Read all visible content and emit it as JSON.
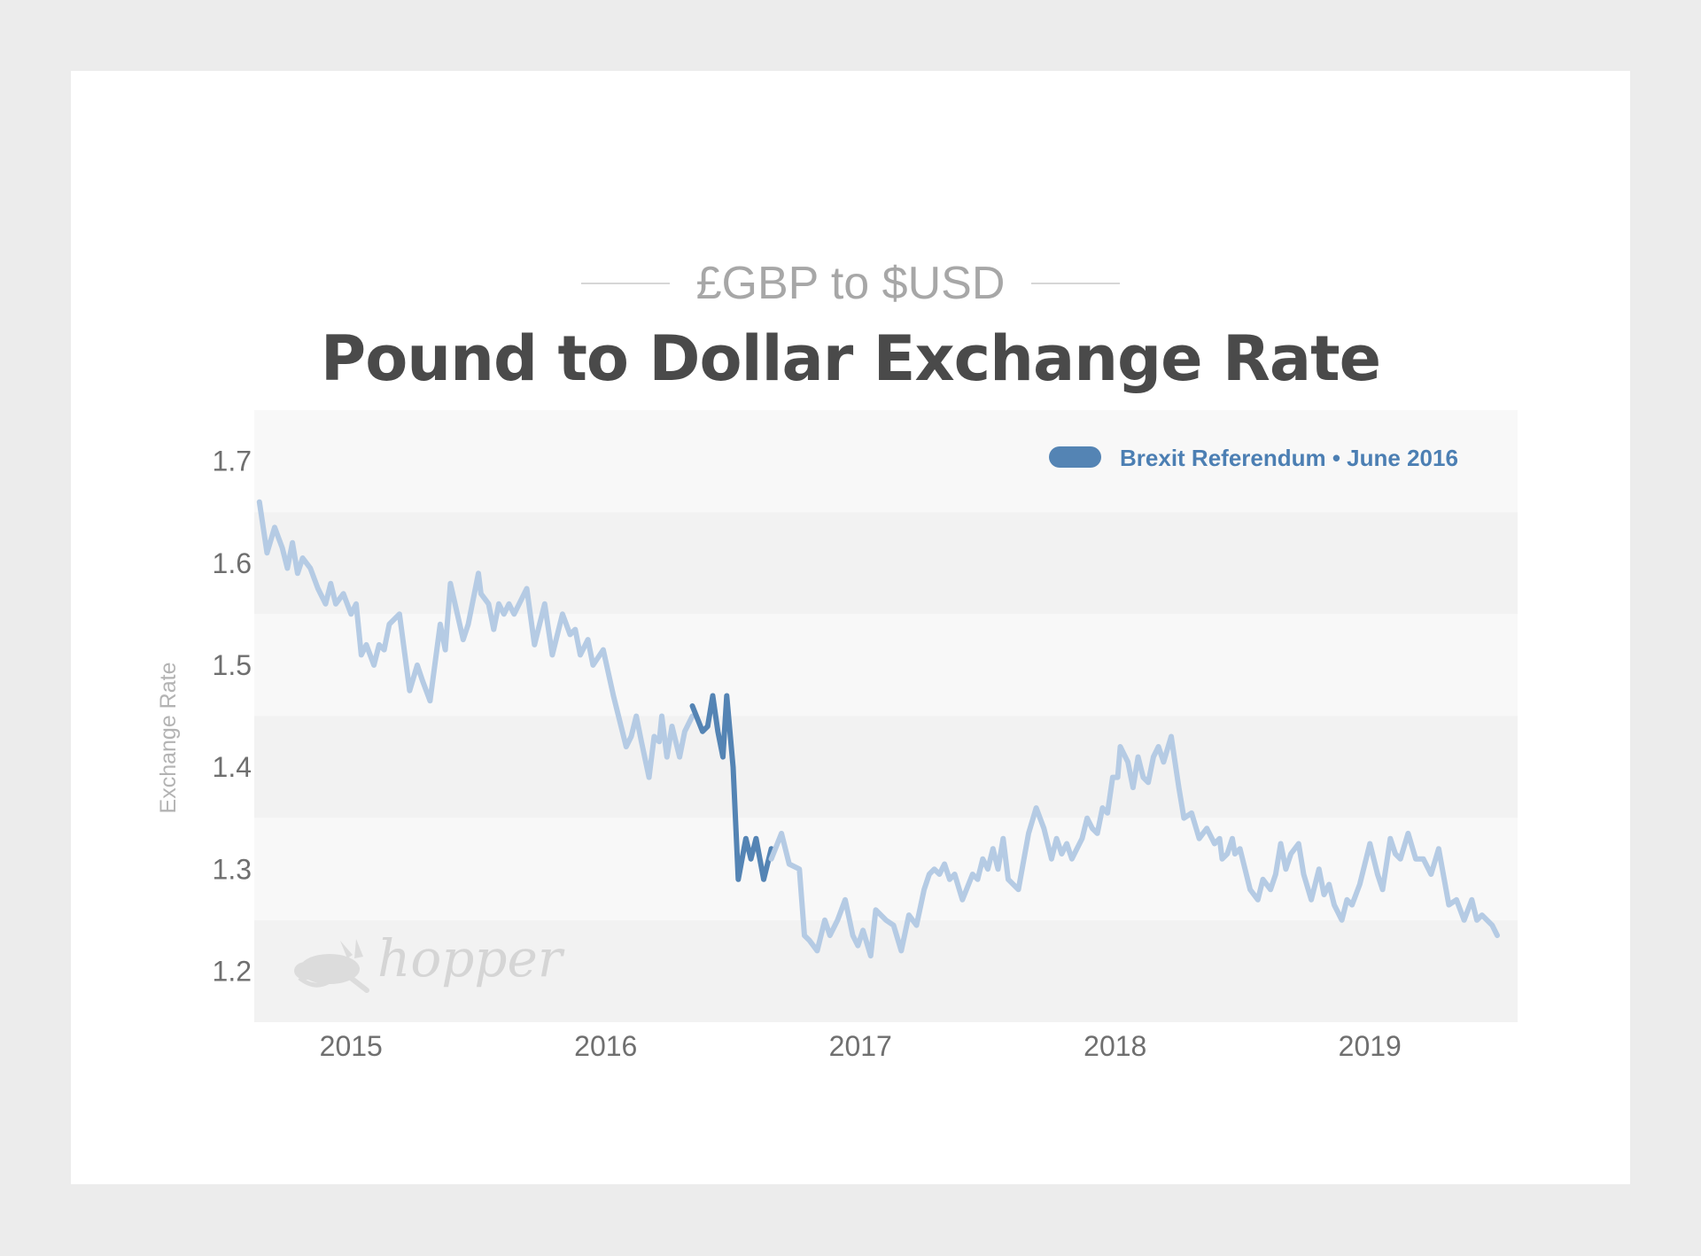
{
  "header": {
    "subtitle": "£GBP to $USD",
    "title": "Pound to Dollar Exchange Rate"
  },
  "watermark": {
    "text": "hopper",
    "icon": "rabbit-icon"
  },
  "colors": {
    "base_line": "#b5cbe4",
    "highlight_line": "#5484b4",
    "band_light": "#f8f8f8",
    "band_dark": "#f2f2f2"
  },
  "chart_data": {
    "type": "line",
    "title": "Pound to Dollar Exchange Rate",
    "subtitle": "£GBP to $USD",
    "ylabel": "Exchange Rate",
    "xlabel": "",
    "xlim": [
      2014.62,
      2019.58
    ],
    "ylim": [
      1.15,
      1.75
    ],
    "x_ticks": [
      2015,
      2016,
      2017,
      2018,
      2019
    ],
    "x_tick_labels": [
      "2015",
      "2016",
      "2017",
      "2018",
      "2019"
    ],
    "y_ticks": [
      1.2,
      1.3,
      1.4,
      1.5,
      1.6,
      1.7
    ],
    "y_tick_labels": [
      "1.2",
      "1.3",
      "1.4",
      "1.5",
      "1.6",
      "1.7"
    ],
    "grid": "alternating horizontal bands",
    "legend_position": "top-right",
    "legend": [
      {
        "label": "Brexit Referendum • June 2016",
        "series": "Brexit Referendum"
      }
    ],
    "series": [
      {
        "points": [
          [
            2014.64,
            1.66
          ],
          [
            2014.67,
            1.61
          ],
          [
            2014.7,
            1.635
          ],
          [
            2014.73,
            1.615
          ],
          [
            2014.75,
            1.595
          ],
          [
            2014.77,
            1.62
          ],
          [
            2014.79,
            1.59
          ],
          [
            2014.81,
            1.605
          ],
          [
            2014.84,
            1.595
          ],
          [
            2014.87,
            1.575
          ],
          [
            2014.9,
            1.56
          ],
          [
            2014.92,
            1.58
          ],
          [
            2014.94,
            1.56
          ],
          [
            2014.97,
            1.57
          ],
          [
            2015.0,
            1.55
          ],
          [
            2015.02,
            1.56
          ],
          [
            2015.04,
            1.51
          ],
          [
            2015.06,
            1.52
          ],
          [
            2015.09,
            1.5
          ],
          [
            2015.11,
            1.52
          ],
          [
            2015.13,
            1.515
          ],
          [
            2015.15,
            1.54
          ],
          [
            2015.19,
            1.55
          ],
          [
            2015.23,
            1.475
          ],
          [
            2015.26,
            1.5
          ],
          [
            2015.28,
            1.485
          ],
          [
            2015.31,
            1.465
          ],
          [
            2015.35,
            1.54
          ],
          [
            2015.37,
            1.515
          ],
          [
            2015.39,
            1.58
          ],
          [
            2015.44,
            1.525
          ],
          [
            2015.46,
            1.54
          ],
          [
            2015.5,
            1.59
          ],
          [
            2015.51,
            1.57
          ],
          [
            2015.54,
            1.56
          ],
          [
            2015.56,
            1.535
          ],
          [
            2015.58,
            1.56
          ],
          [
            2015.6,
            1.55
          ],
          [
            2015.62,
            1.56
          ],
          [
            2015.64,
            1.55
          ],
          [
            2015.69,
            1.575
          ],
          [
            2015.72,
            1.52
          ],
          [
            2015.76,
            1.56
          ],
          [
            2015.79,
            1.51
          ],
          [
            2015.83,
            1.55
          ],
          [
            2015.86,
            1.53
          ],
          [
            2015.88,
            1.535
          ],
          [
            2015.9,
            1.51
          ],
          [
            2015.93,
            1.525
          ],
          [
            2015.95,
            1.5
          ],
          [
            2015.99,
            1.515
          ],
          [
            2016.03,
            1.47
          ],
          [
            2016.08,
            1.42
          ],
          [
            2016.1,
            1.43
          ],
          [
            2016.12,
            1.45
          ],
          [
            2016.14,
            1.425
          ],
          [
            2016.17,
            1.39
          ],
          [
            2016.19,
            1.43
          ],
          [
            2016.21,
            1.425
          ],
          [
            2016.22,
            1.45
          ],
          [
            2016.24,
            1.41
          ],
          [
            2016.26,
            1.44
          ],
          [
            2016.29,
            1.41
          ],
          [
            2016.31,
            1.435
          ],
          [
            2016.34,
            1.45
          ]
        ]
      },
      {
        "name": "Brexit Referendum",
        "points": [
          [
            2016.34,
            1.46
          ],
          [
            2016.38,
            1.435
          ],
          [
            2016.4,
            1.44
          ],
          [
            2016.42,
            1.47
          ],
          [
            2016.44,
            1.435
          ],
          [
            2016.46,
            1.41
          ],
          [
            2016.475,
            1.47
          ],
          [
            2016.5,
            1.4
          ],
          [
            2016.52,
            1.29
          ],
          [
            2016.55,
            1.33
          ],
          [
            2016.57,
            1.31
          ],
          [
            2016.59,
            1.33
          ],
          [
            2016.62,
            1.29
          ],
          [
            2016.65,
            1.32
          ]
        ]
      },
      {
        "points": [
          [
            2016.65,
            1.31
          ],
          [
            2016.69,
            1.335
          ],
          [
            2016.72,
            1.305
          ],
          [
            2016.76,
            1.3
          ],
          [
            2016.78,
            1.235
          ],
          [
            2016.8,
            1.23
          ],
          [
            2016.83,
            1.22
          ],
          [
            2016.86,
            1.25
          ],
          [
            2016.88,
            1.235
          ],
          [
            2016.91,
            1.25
          ],
          [
            2016.94,
            1.27
          ],
          [
            2016.97,
            1.235
          ],
          [
            2016.99,
            1.225
          ],
          [
            2017.01,
            1.24
          ],
          [
            2017.04,
            1.215
          ],
          [
            2017.06,
            1.26
          ],
          [
            2017.1,
            1.25
          ],
          [
            2017.13,
            1.245
          ],
          [
            2017.16,
            1.22
          ],
          [
            2017.19,
            1.255
          ],
          [
            2017.22,
            1.245
          ],
          [
            2017.25,
            1.28
          ],
          [
            2017.27,
            1.295
          ],
          [
            2017.29,
            1.3
          ],
          [
            2017.31,
            1.295
          ],
          [
            2017.33,
            1.305
          ],
          [
            2017.35,
            1.29
          ],
          [
            2017.37,
            1.295
          ],
          [
            2017.4,
            1.27
          ],
          [
            2017.44,
            1.295
          ],
          [
            2017.46,
            1.29
          ],
          [
            2017.48,
            1.31
          ],
          [
            2017.5,
            1.3
          ],
          [
            2017.52,
            1.32
          ],
          [
            2017.54,
            1.3
          ],
          [
            2017.56,
            1.33
          ],
          [
            2017.58,
            1.29
          ],
          [
            2017.62,
            1.28
          ],
          [
            2017.66,
            1.335
          ],
          [
            2017.69,
            1.36
          ],
          [
            2017.72,
            1.34
          ],
          [
            2017.75,
            1.31
          ],
          [
            2017.77,
            1.33
          ],
          [
            2017.79,
            1.315
          ],
          [
            2017.81,
            1.325
          ],
          [
            2017.83,
            1.31
          ],
          [
            2017.85,
            1.32
          ],
          [
            2017.87,
            1.33
          ],
          [
            2017.89,
            1.35
          ],
          [
            2017.91,
            1.34
          ],
          [
            2017.93,
            1.335
          ],
          [
            2017.95,
            1.36
          ],
          [
            2017.97,
            1.355
          ],
          [
            2017.99,
            1.39
          ],
          [
            2018.01,
            1.39
          ],
          [
            2018.02,
            1.42
          ],
          [
            2018.05,
            1.405
          ],
          [
            2018.07,
            1.38
          ],
          [
            2018.09,
            1.41
          ],
          [
            2018.11,
            1.39
          ],
          [
            2018.13,
            1.385
          ],
          [
            2018.15,
            1.41
          ],
          [
            2018.17,
            1.42
          ],
          [
            2018.19,
            1.405
          ],
          [
            2018.22,
            1.43
          ],
          [
            2018.25,
            1.38
          ],
          [
            2018.27,
            1.35
          ],
          [
            2018.3,
            1.355
          ],
          [
            2018.33,
            1.33
          ],
          [
            2018.36,
            1.34
          ],
          [
            2018.39,
            1.325
          ],
          [
            2018.41,
            1.33
          ],
          [
            2018.42,
            1.31
          ],
          [
            2018.44,
            1.315
          ],
          [
            2018.46,
            1.33
          ],
          [
            2018.47,
            1.315
          ],
          [
            2018.49,
            1.32
          ],
          [
            2018.53,
            1.28
          ],
          [
            2018.56,
            1.27
          ],
          [
            2018.58,
            1.29
          ],
          [
            2018.61,
            1.28
          ],
          [
            2018.63,
            1.295
          ],
          [
            2018.65,
            1.325
          ],
          [
            2018.67,
            1.3
          ],
          [
            2018.69,
            1.315
          ],
          [
            2018.72,
            1.325
          ],
          [
            2018.74,
            1.295
          ],
          [
            2018.77,
            1.27
          ],
          [
            2018.8,
            1.3
          ],
          [
            2018.82,
            1.275
          ],
          [
            2018.84,
            1.285
          ],
          [
            2018.86,
            1.265
          ],
          [
            2018.89,
            1.25
          ],
          [
            2018.91,
            1.27
          ],
          [
            2018.93,
            1.265
          ],
          [
            2018.96,
            1.285
          ],
          [
            2019.0,
            1.325
          ],
          [
            2019.03,
            1.295
          ],
          [
            2019.05,
            1.28
          ],
          [
            2019.08,
            1.33
          ],
          [
            2019.1,
            1.315
          ],
          [
            2019.12,
            1.31
          ],
          [
            2019.15,
            1.335
          ],
          [
            2019.18,
            1.31
          ],
          [
            2019.21,
            1.31
          ],
          [
            2019.24,
            1.295
          ],
          [
            2019.27,
            1.32
          ],
          [
            2019.31,
            1.265
          ],
          [
            2019.34,
            1.27
          ],
          [
            2019.37,
            1.25
          ],
          [
            2019.4,
            1.27
          ],
          [
            2019.42,
            1.25
          ],
          [
            2019.44,
            1.255
          ],
          [
            2019.48,
            1.245
          ],
          [
            2019.5,
            1.235
          ]
        ]
      }
    ]
  }
}
